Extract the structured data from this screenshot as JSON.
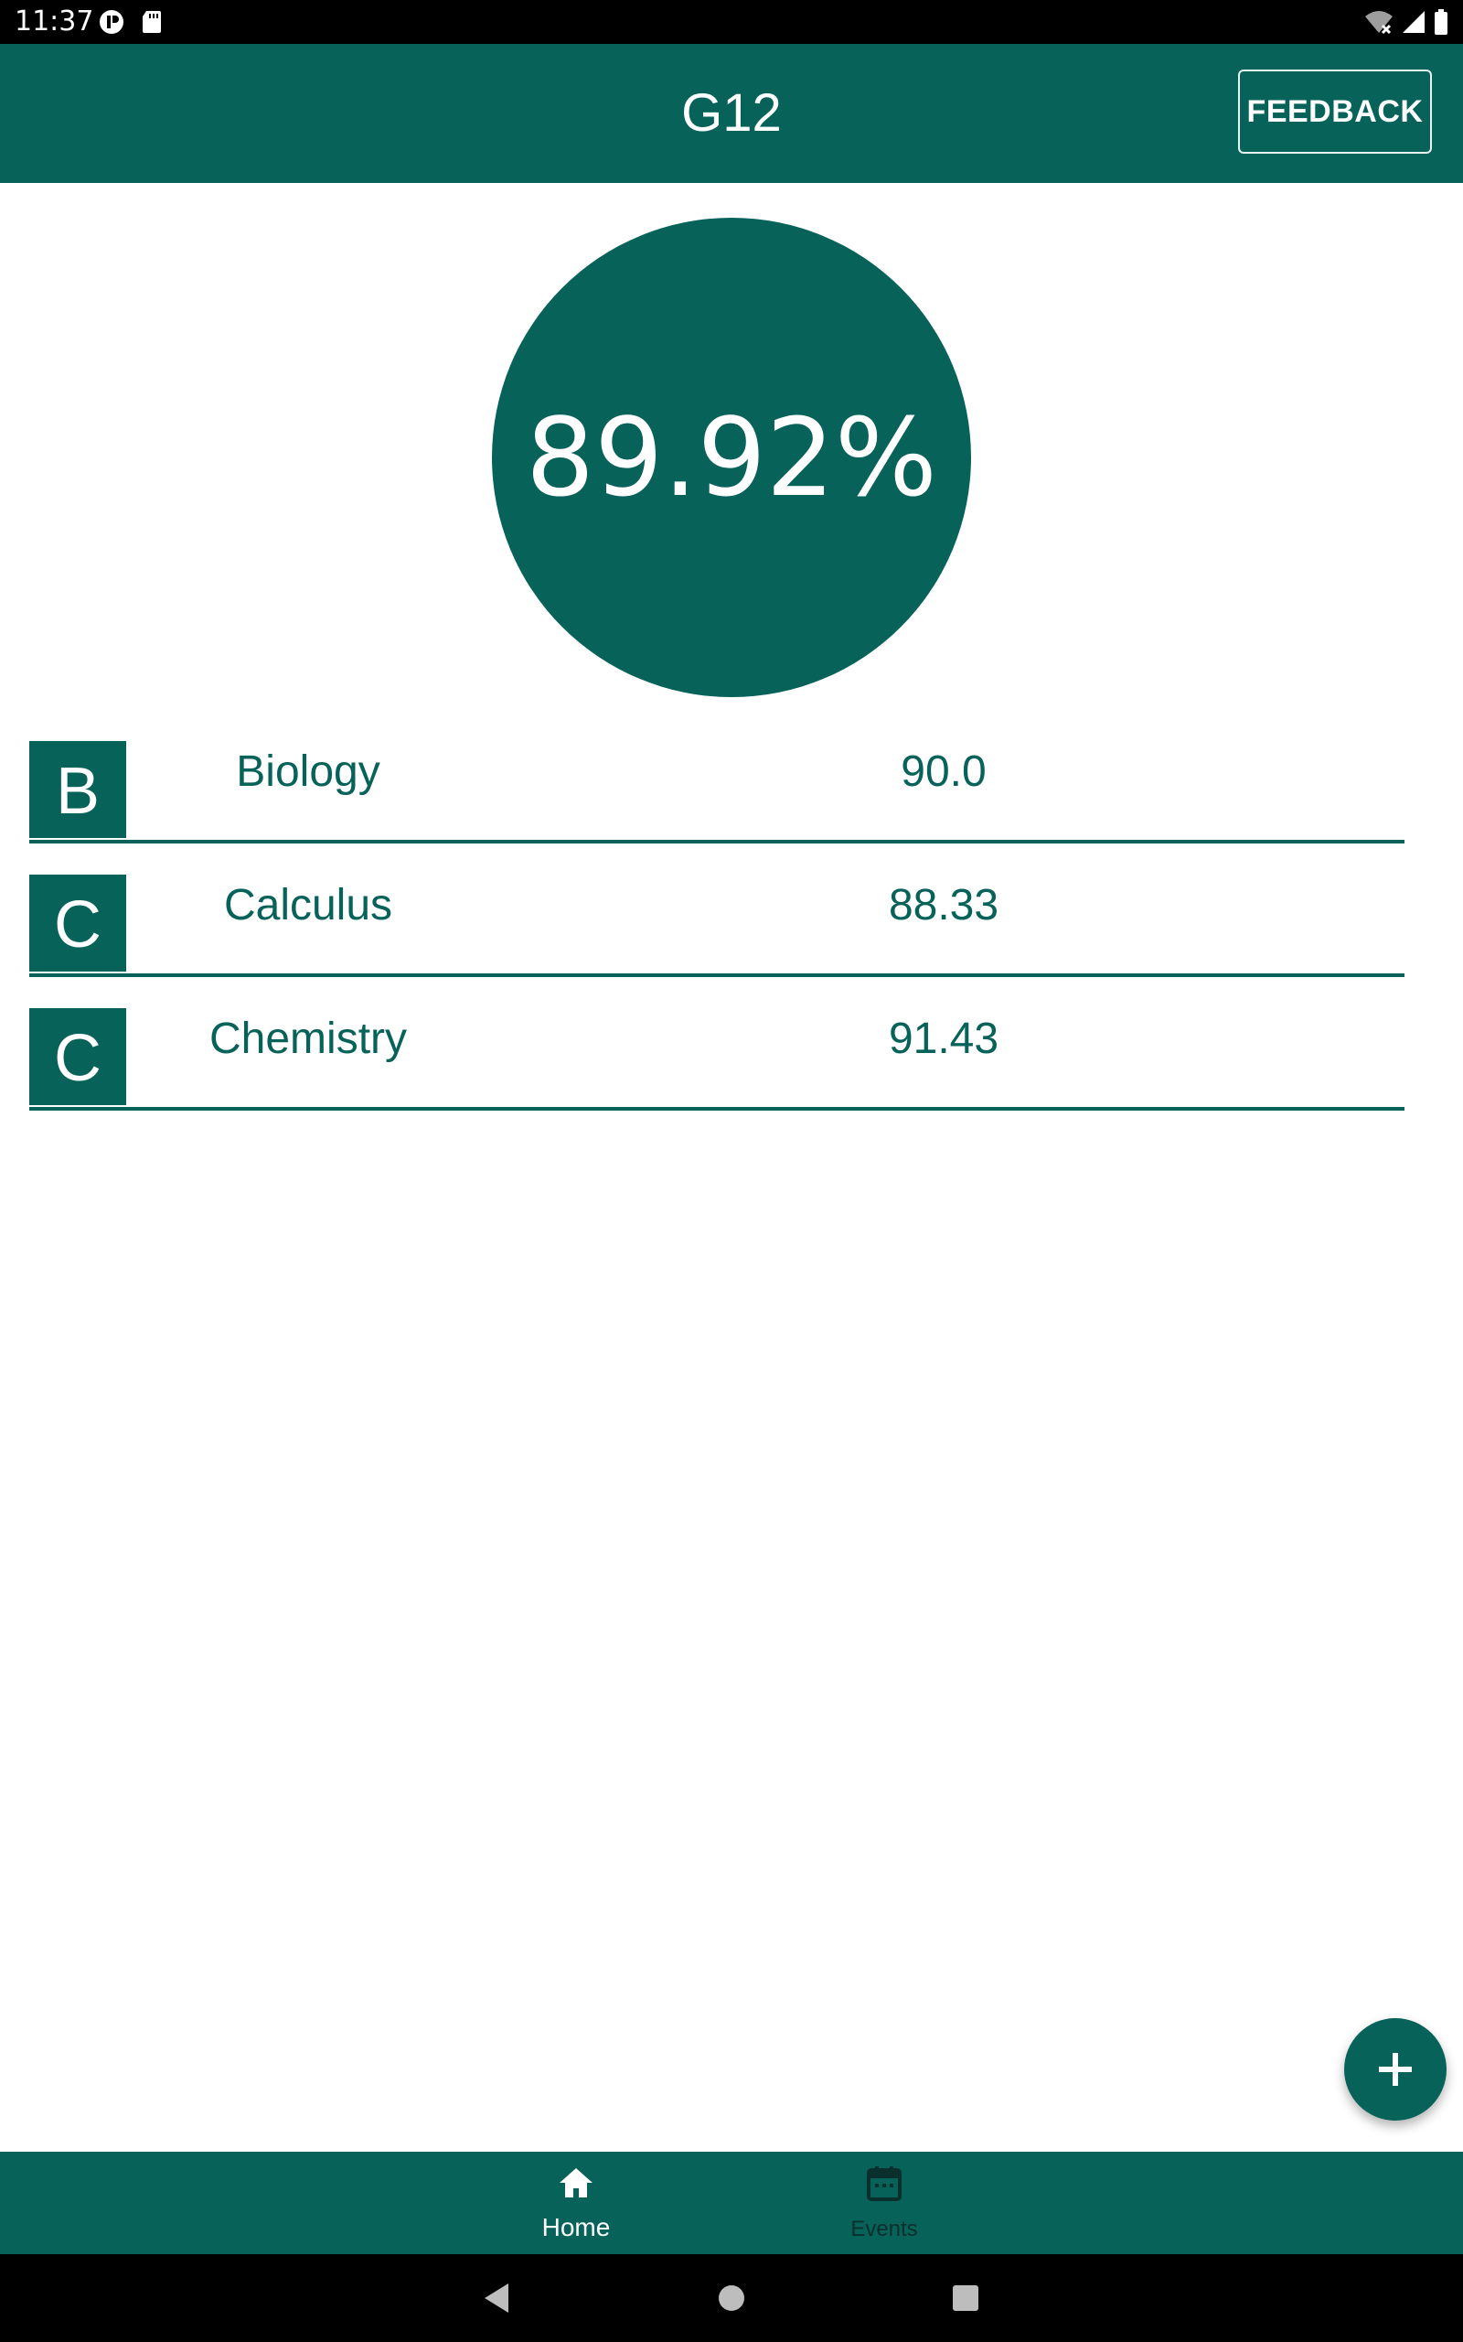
{
  "status_bar": {
    "time": "11:37"
  },
  "app_bar": {
    "title": "G12",
    "feedback_label": "FEEDBACK"
  },
  "summary": {
    "average": "89.92%"
  },
  "courses": [
    {
      "letter": "B",
      "name": "Biology",
      "grade": "90.0"
    },
    {
      "letter": "C",
      "name": "Calculus",
      "grade": "88.33"
    },
    {
      "letter": "C",
      "name": "Chemistry",
      "grade": "91.43"
    }
  ],
  "fab": {
    "icon": "plus-icon"
  },
  "bottom_nav": {
    "items": [
      {
        "label": "Home",
        "icon": "home-icon",
        "selected": true
      },
      {
        "label": "Events",
        "icon": "calendar-icon",
        "selected": false
      }
    ]
  },
  "colors": {
    "primary": "#07625a",
    "primary_text": "#07625a",
    "on_primary": "#ffffff",
    "background": "#ffffff",
    "inactive_nav": "#0b2f2c"
  }
}
